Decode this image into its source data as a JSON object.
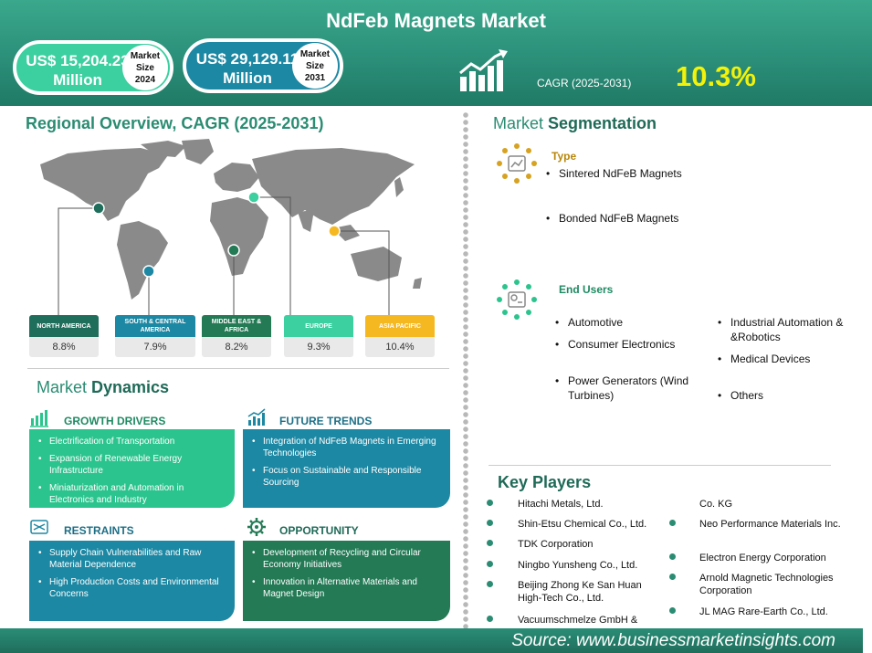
{
  "header": {
    "title": "NdFeb Magnets Market",
    "size_2024": {
      "value": "US$ 15,204.23 Million",
      "label_line1": "Market",
      "label_line2": "Size",
      "year": "2024"
    },
    "size_2031": {
      "value": "US$ 29,129.11 Million",
      "label_line1": "Market",
      "label_line2": "Size",
      "year": "2031"
    },
    "cagr_label": "CAGR (2025-2031)",
    "cagr_value": "10.3%"
  },
  "regional": {
    "title": "Regional Overview, CAGR (2025-2031)",
    "regions": [
      {
        "name": "NORTH AMERICA",
        "cagr": "8.8%",
        "color": "#1f6e5c"
      },
      {
        "name": "SOUTH & CENTRAL AMERICA",
        "cagr": "7.9%",
        "color": "#1d88a3"
      },
      {
        "name": "MIDDLE EAST & AFRICA",
        "cagr": "8.2%",
        "color": "#237a55"
      },
      {
        "name": "EUROPE",
        "cagr": "9.3%",
        "color": "#3ccfa0"
      },
      {
        "name": "ASIA PACIFIC",
        "cagr": "10.4%",
        "color": "#f5b820"
      }
    ]
  },
  "dynamics": {
    "title_a": "Market ",
    "title_b": "Dynamics",
    "growth_drivers": {
      "label": "GROWTH DRIVERS",
      "items": [
        "Electrification of Transportation",
        "Expansion of Renewable Energy Infrastructure",
        "Miniaturization and Automation in Electronics and Industry"
      ]
    },
    "future_trends": {
      "label": "FUTURE TRENDS",
      "items": [
        "Integration of NdFeB Magnets in Emerging Technologies",
        "Focus on Sustainable and Responsible Sourcing"
      ]
    },
    "restraints": {
      "label": "RESTRAINTS",
      "items": [
        "Supply Chain Vulnerabilities and Raw Material Dependence",
        "High Production Costs and Environmental Concerns"
      ]
    },
    "opportunity": {
      "label": "OPPORTUNITY",
      "items": [
        "Development of Recycling and Circular Economy Initiatives",
        "Innovation in Alternative Materials and Magnet Design"
      ]
    },
    "colors": {
      "drivers": "#2cc48e",
      "trends": "#1d88a3",
      "restraints": "#1d88a3",
      "opportunity": "#237a55"
    }
  },
  "segmentation": {
    "title_a": "Market ",
    "title_b": "Segmentation",
    "type": {
      "label": "Type",
      "items": [
        "Sintered NdFeB Magnets",
        "Bonded NdFeB Magnets"
      ]
    },
    "end_users": {
      "label": "End Users",
      "items_left": [
        "Automotive",
        "Consumer Electronics",
        "Power Generators (Wind Turbines)"
      ],
      "items_right": [
        "Industrial Automation & &Robotics",
        "Medical Devices",
        "Others"
      ]
    }
  },
  "key_players": {
    "title": "Key Players",
    "left": [
      "Hitachi Metals, Ltd.",
      "Shin-Etsu Chemical Co., Ltd.",
      "TDK Corporation",
      "Ningbo Yunsheng Co., Ltd.",
      "Beijing Zhong Ke San Huan High-Tech Co., Ltd.",
      "Vacuumschmelze GmbH &"
    ],
    "right": [
      "Co. KG",
      "Neo Performance Materials Inc.",
      "Electron Energy Corporation",
      "Arnold Magnetic Technologies Corporation",
      "JL MAG Rare-Earth Co., Ltd."
    ]
  },
  "footer": {
    "source": "Source: www.businessmarketinsights.com"
  }
}
